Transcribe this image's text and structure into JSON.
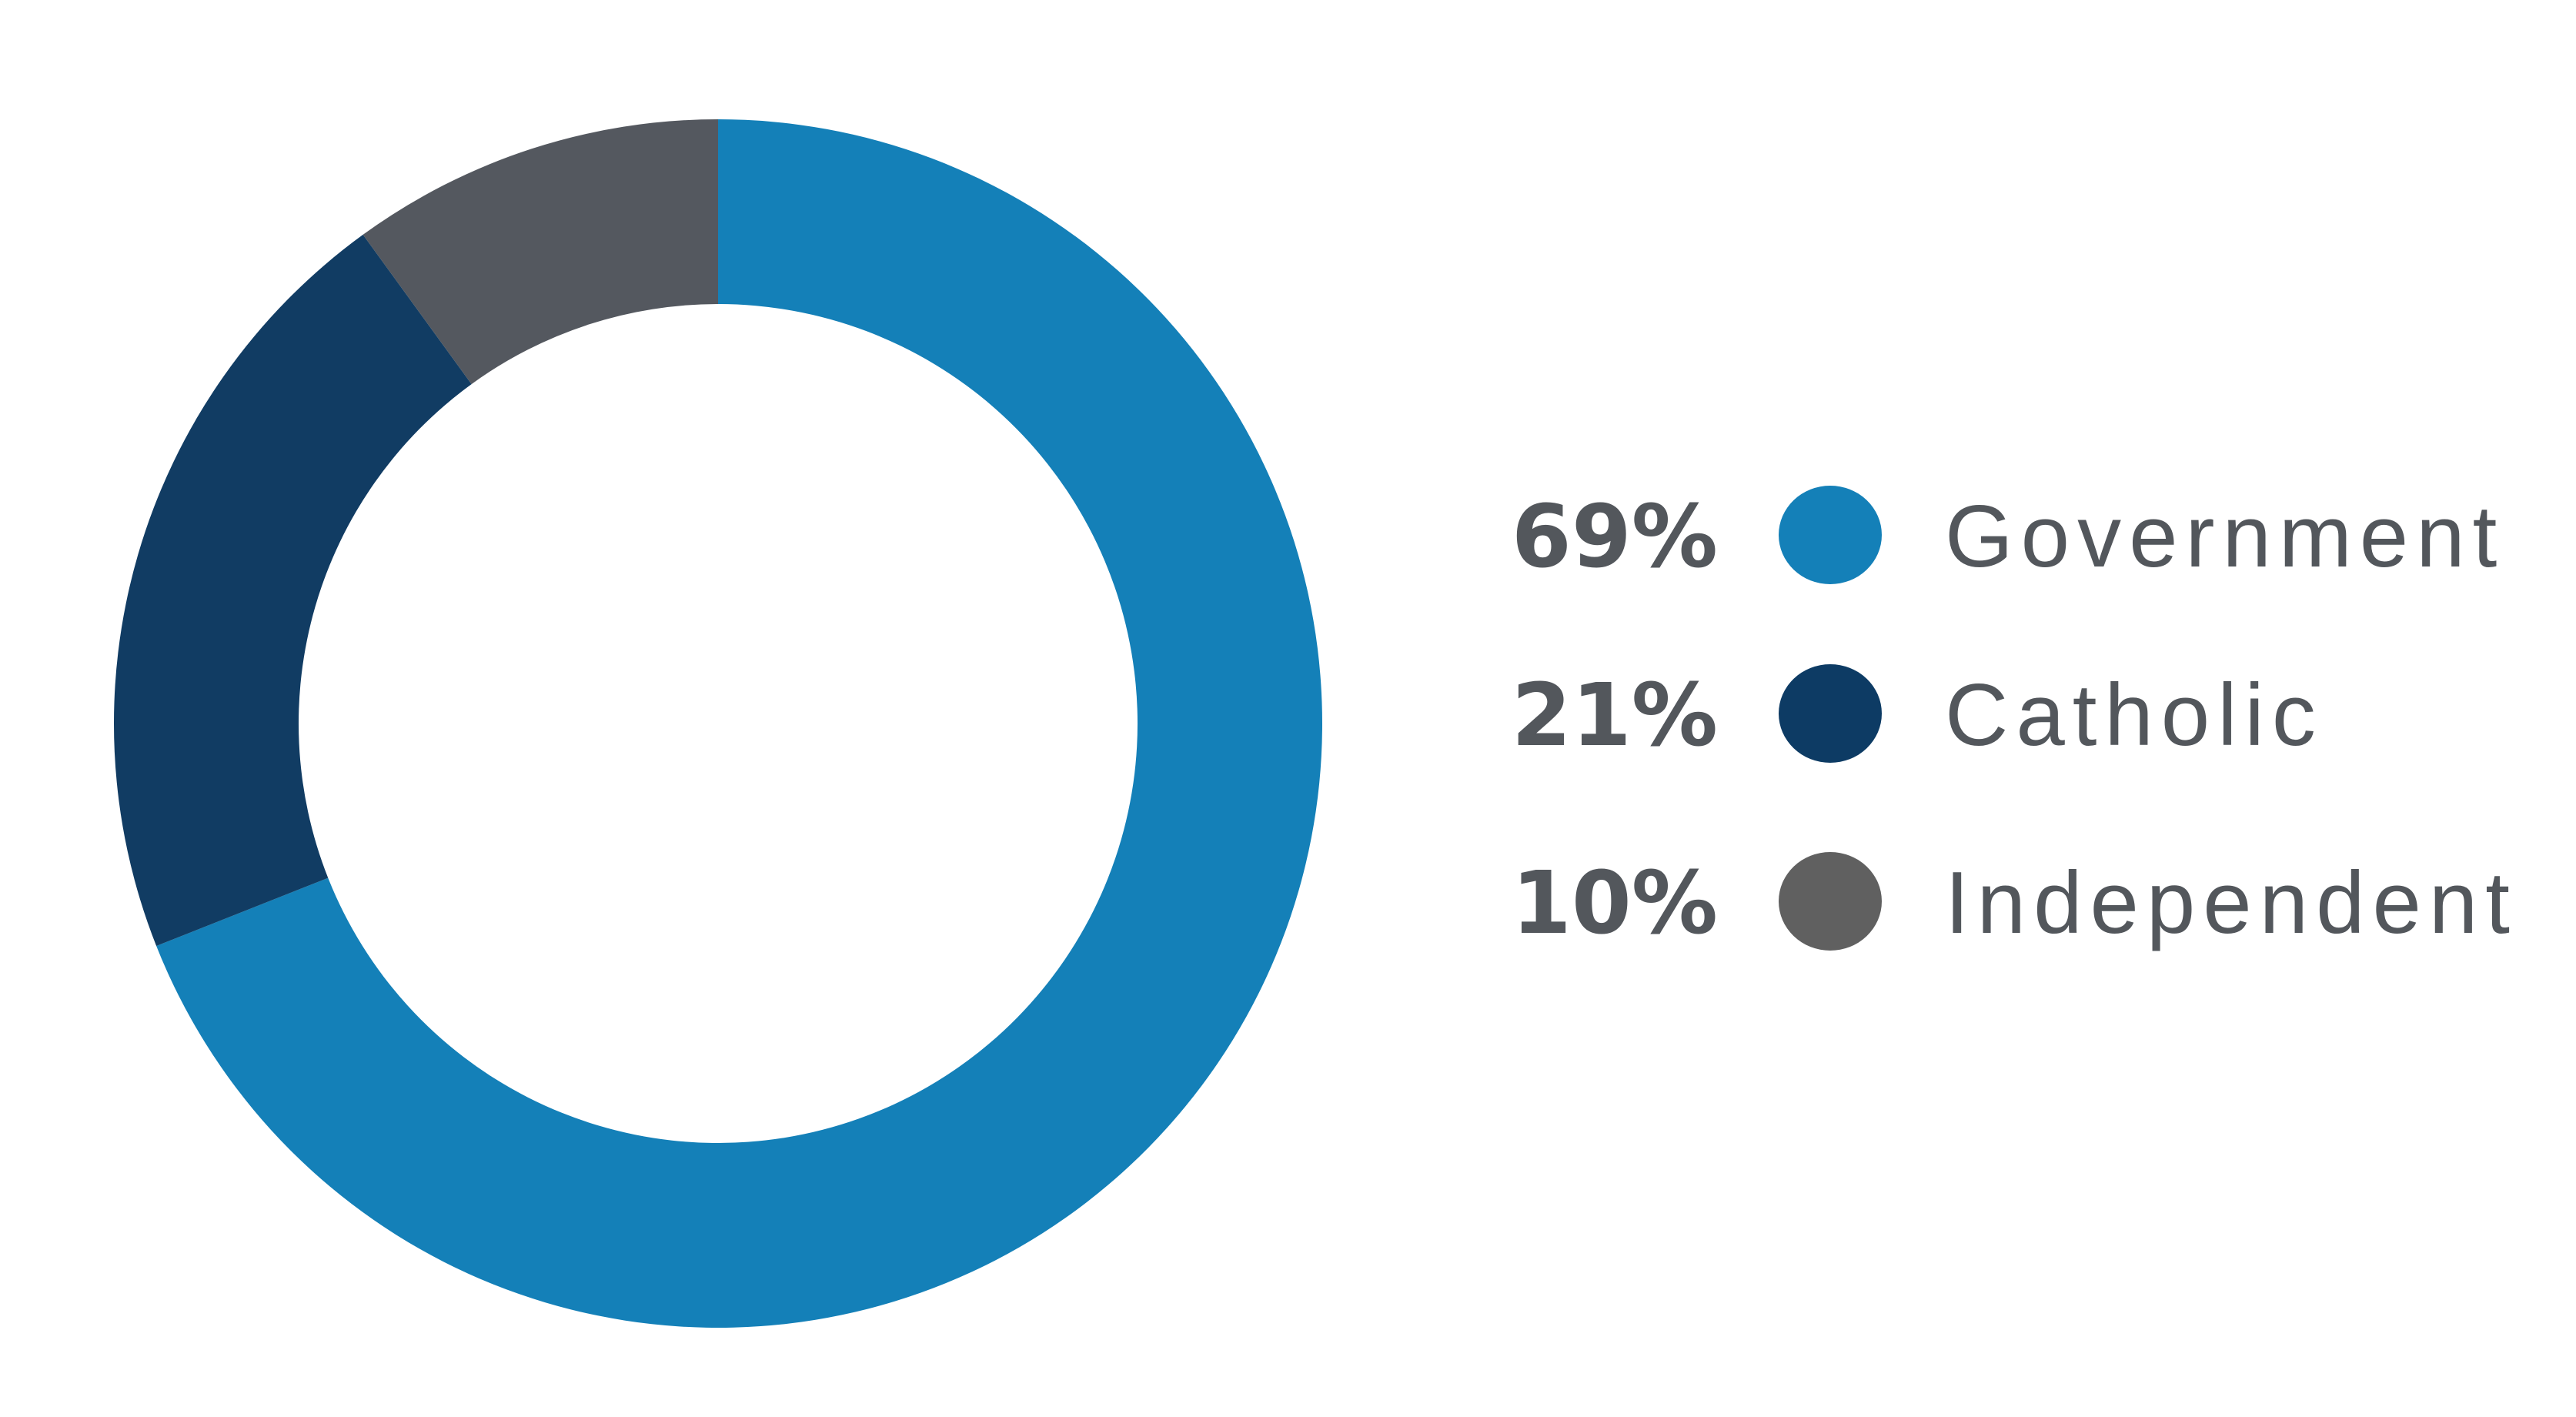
{
  "chart_data": {
    "type": "pie",
    "variant": "donut",
    "start": "top",
    "direction": "clockwise",
    "legend_placement": "right",
    "slices": [
      {
        "label": "Government",
        "value": 69,
        "value_label": "69%",
        "color": "#1480b8",
        "legend_color": "#1480b8"
      },
      {
        "label": "Catholic",
        "value": 21,
        "value_label": "21%",
        "color": "#113c63",
        "legend_color": "#0d3b64"
      },
      {
        "label": "Independent",
        "value": 10,
        "value_label": "10%",
        "color": "#54585f",
        "legend_color": "#606060"
      }
    ]
  }
}
